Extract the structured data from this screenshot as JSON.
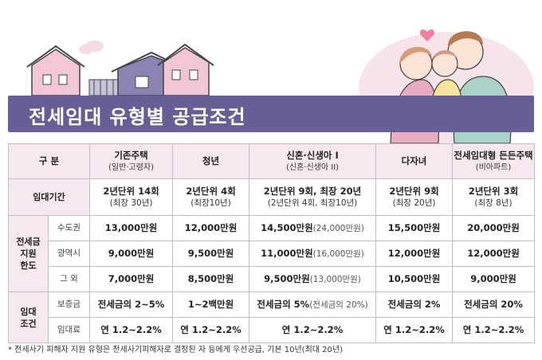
{
  "title": "전세임대 유형별 공급조건",
  "header": {
    "category": "구 분",
    "columns": [
      {
        "name": "기존주택",
        "sub": "(일반·고령자)"
      },
      {
        "name": "청년",
        "sub": ""
      },
      {
        "name": "신혼·신생아 I",
        "sub": "(신혼·신생아 II)"
      },
      {
        "name": "다자녀",
        "sub": ""
      },
      {
        "name": "전세임대형 든든주택",
        "sub": "(비아파트)"
      }
    ]
  },
  "lease_period": {
    "label": "임대기간",
    "values": [
      {
        "l1": "2년단위 14회",
        "l2": "(최장 30년)"
      },
      {
        "l1": "2년단위 4회",
        "l2": "(최장10년)"
      },
      {
        "l1": "2년단위 9회, 최장 20년",
        "l2": "(2년단위 4회, 최장10년)"
      },
      {
        "l1": "2년단위 9회",
        "l2": "(최장 20년)"
      },
      {
        "l1": "2년단위 3회",
        "l2": "(최장 8년)"
      }
    ]
  },
  "support_limit": {
    "label": "전세금\n지원\n한도",
    "label_lines": [
      "전세금",
      "지원",
      "한도"
    ],
    "rows": [
      {
        "region": "수도권",
        "values": [
          {
            "v": "13,000만원",
            "alt": ""
          },
          {
            "v": "12,000만원",
            "alt": ""
          },
          {
            "v": "14,500만원",
            "alt": "(24,000만원)"
          },
          {
            "v": "15,500만원",
            "alt": ""
          },
          {
            "v": "20,000만원",
            "alt": ""
          }
        ]
      },
      {
        "region": "광역시",
        "values": [
          {
            "v": "9,000만원",
            "alt": ""
          },
          {
            "v": "9,500만원",
            "alt": ""
          },
          {
            "v": "11,000만원",
            "alt": "(16,000만원)"
          },
          {
            "v": "12,000만원",
            "alt": ""
          },
          {
            "v": "12,000만원",
            "alt": ""
          }
        ]
      },
      {
        "region": "그 외",
        "values": [
          {
            "v": "7,000만원",
            "alt": ""
          },
          {
            "v": "8,500만원",
            "alt": ""
          },
          {
            "v": "9,500만원",
            "alt": "(13,000만원)"
          },
          {
            "v": "10,500만원",
            "alt": ""
          },
          {
            "v": "9,000만원",
            "alt": ""
          }
        ]
      }
    ]
  },
  "rent_conditions": {
    "label_lines": [
      "임대",
      "조건"
    ],
    "rows": [
      {
        "item": "보증금",
        "values": [
          {
            "v": "전세금의 2~5%",
            "alt": ""
          },
          {
            "v": "1~2백만원",
            "alt": ""
          },
          {
            "v": "전세금의 5%",
            "alt": "(전세금의 20%)"
          },
          {
            "v": "전세금의 2%",
            "alt": ""
          },
          {
            "v": "전세금의 20%",
            "alt": ""
          }
        ]
      },
      {
        "item": "임대료",
        "values": [
          {
            "v": "연 1.2~2.2%",
            "alt": ""
          },
          {
            "v": "연 1.2~2.2%",
            "alt": ""
          },
          {
            "v": "연 1.2~2.2%",
            "alt": ""
          },
          {
            "v": "연 1.2~2.2%",
            "alt": ""
          },
          {
            "v": "연 1.2~2.2%",
            "alt": ""
          }
        ]
      }
    ]
  },
  "footnote": "* 전세사기 피해자 지원 유형은 전세사기피해자로 결정된 자 등에게 우선공급, 기본 10년(최대 20년)",
  "colors": {
    "banner": "#655f96",
    "header_bg": "#f6e8ee",
    "border": "#c9bcc7",
    "house_pink": "#f3c6d6",
    "house_purple": "#8a84b4"
  }
}
